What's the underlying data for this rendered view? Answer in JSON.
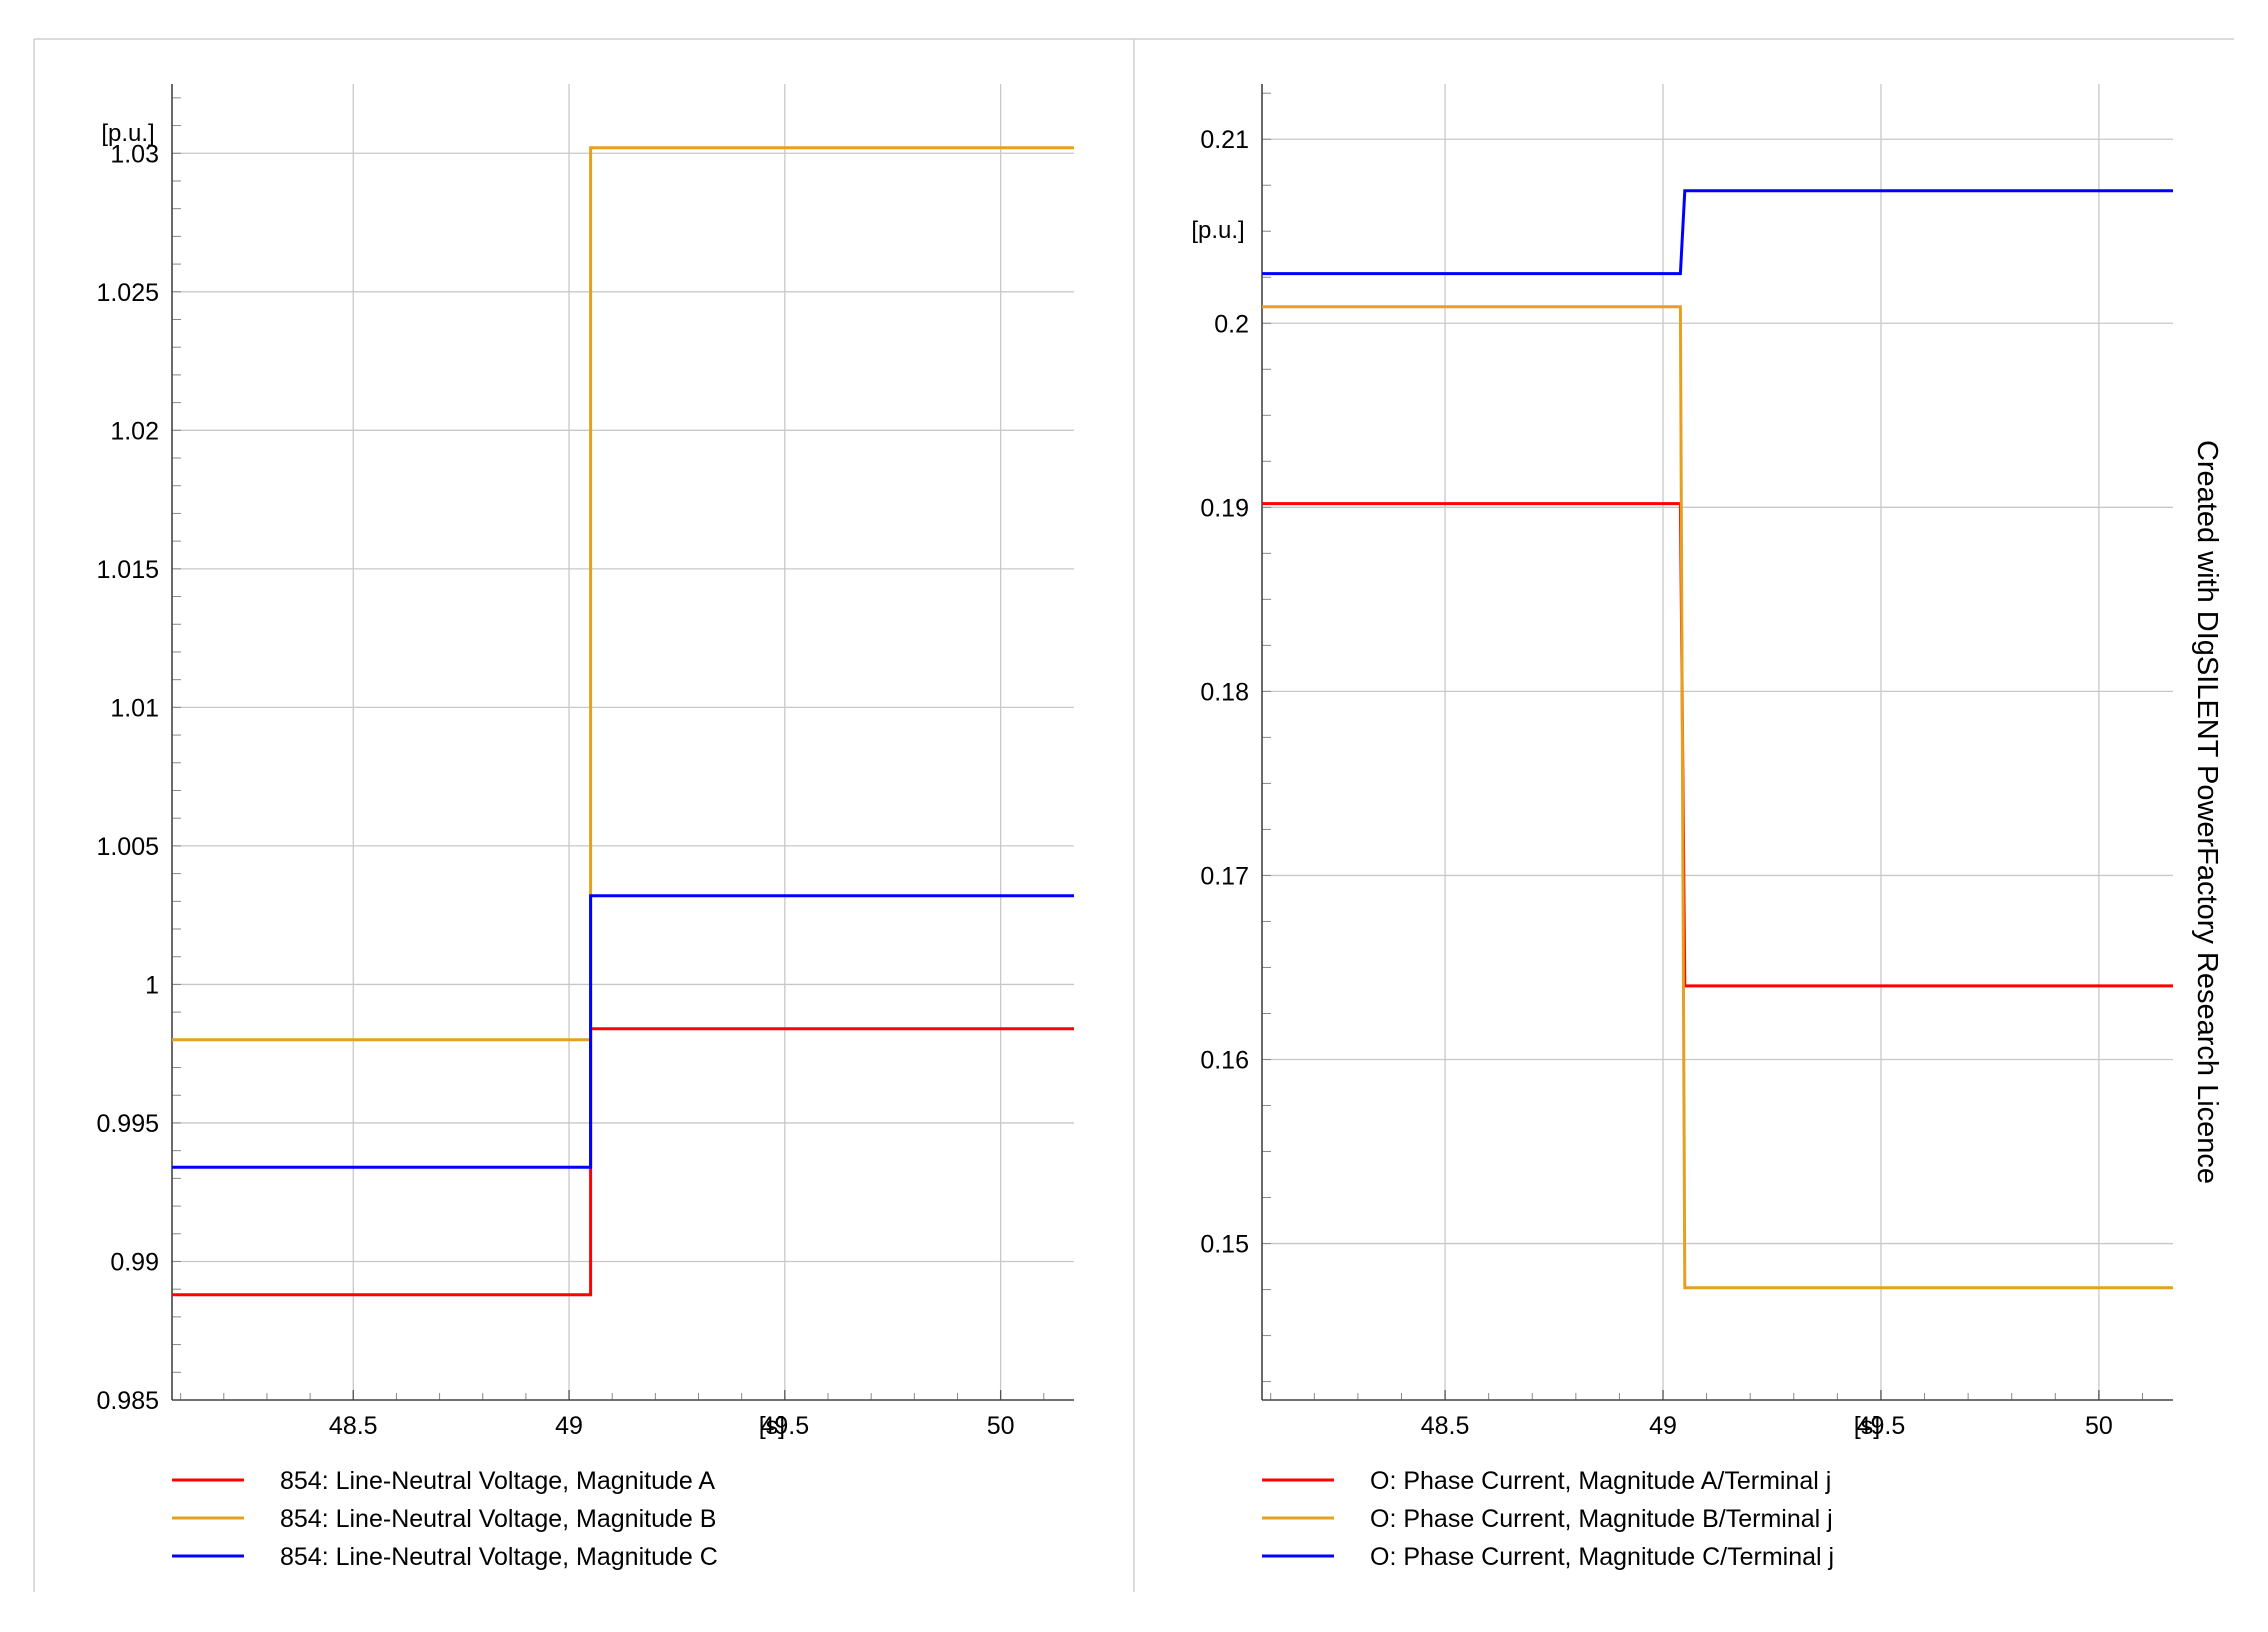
{
  "watermark": "Created with DIgSILENT PowerFactory Research Licence",
  "series_colors": {
    "A": "#ff0000",
    "B": "#e6a020",
    "C": "#0000ff"
  },
  "chart_data": [
    {
      "type": "line",
      "step": true,
      "ylabel": "[p.u.]",
      "xlabel": "[s]",
      "xlim": [
        48.08,
        50.17
      ],
      "ylim": [
        0.985,
        1.0325
      ],
      "x_ticks": [
        {
          "value": 48.5,
          "label": "48.5"
        },
        {
          "value": 49.0,
          "label": "49"
        },
        {
          "value": 49.5,
          "label": "49.5"
        },
        {
          "value": 50.0,
          "label": "50"
        }
      ],
      "x_unit_at": 49.25,
      "y_ticks": [
        {
          "value": 0.985,
          "label": "0.985"
        },
        {
          "value": 0.99,
          "label": "0.99"
        },
        {
          "value": 0.995,
          "label": "0.995"
        },
        {
          "value": 1.0,
          "label": "1"
        },
        {
          "value": 1.005,
          "label": "1.005"
        },
        {
          "value": 1.01,
          "label": "1.01"
        },
        {
          "value": 1.015,
          "label": "1.015"
        },
        {
          "value": 1.02,
          "label": "1.02"
        },
        {
          "value": 1.025,
          "label": "1.025"
        },
        {
          "value": 1.03,
          "label": "1.03"
        }
      ],
      "y_minor_step": 0.001,
      "y_unit_at": 1.0325,
      "grid": true,
      "legend_position": "bottom",
      "series": [
        {
          "name": "854: Line-Neutral Voltage, Magnitude A",
          "color": "#ff0000",
          "x": [
            48.08,
            49.05,
            49.05,
            50.17
          ],
          "y": [
            0.9888,
            0.9888,
            0.9984,
            0.9984
          ]
        },
        {
          "name": "854: Line-Neutral Voltage, Magnitude B",
          "color": "#e6a020",
          "x": [
            48.08,
            49.05,
            49.05,
            50.17
          ],
          "y": [
            0.998,
            0.998,
            1.0302,
            1.0302
          ]
        },
        {
          "name": "854: Line-Neutral Voltage, Magnitude C",
          "color": "#0000ff",
          "x": [
            48.08,
            49.05,
            49.05,
            50.17
          ],
          "y": [
            0.9934,
            0.9934,
            1.0032,
            1.0032
          ]
        }
      ]
    },
    {
      "type": "line",
      "step": true,
      "ylabel": "[p.u.]",
      "xlabel": "[s]",
      "xlim": [
        48.08,
        50.17
      ],
      "ylim": [
        0.1415,
        0.213
      ],
      "x_ticks": [
        {
          "value": 48.5,
          "label": "48.5"
        },
        {
          "value": 49.0,
          "label": "49"
        },
        {
          "value": 49.5,
          "label": "49.5"
        },
        {
          "value": 50.0,
          "label": "50"
        }
      ],
      "x_unit_at": 49.25,
      "y_ticks": [
        {
          "value": 0.15,
          "label": "0.15"
        },
        {
          "value": 0.16,
          "label": "0.16"
        },
        {
          "value": 0.17,
          "label": "0.17"
        },
        {
          "value": 0.18,
          "label": "0.18"
        },
        {
          "value": 0.19,
          "label": "0.19"
        },
        {
          "value": 0.2,
          "label": "0.2"
        },
        {
          "value": 0.21,
          "label": "0.21"
        }
      ],
      "y_minor_step": 0.0025,
      "y_unit_at": 0.205,
      "grid": true,
      "legend_position": "bottom",
      "series": [
        {
          "name": "O: Phase Current, Magnitude A/Terminal j",
          "color": "#ff0000",
          "x": [
            48.08,
            49.04,
            49.05,
            50.17
          ],
          "y": [
            0.1902,
            0.1902,
            0.164,
            0.164
          ]
        },
        {
          "name": "O: Phase Current, Magnitude B/Terminal j",
          "color": "#e6a020",
          "x": [
            48.08,
            49.04,
            49.05,
            50.17
          ],
          "y": [
            0.2009,
            0.2009,
            0.1476,
            0.1476
          ]
        },
        {
          "name": "O: Phase Current, Magnitude C/Terminal j",
          "color": "#0000ff",
          "x": [
            48.08,
            49.04,
            49.05,
            50.17
          ],
          "y": [
            0.2027,
            0.2027,
            0.2072,
            0.2072
          ]
        }
      ]
    }
  ]
}
